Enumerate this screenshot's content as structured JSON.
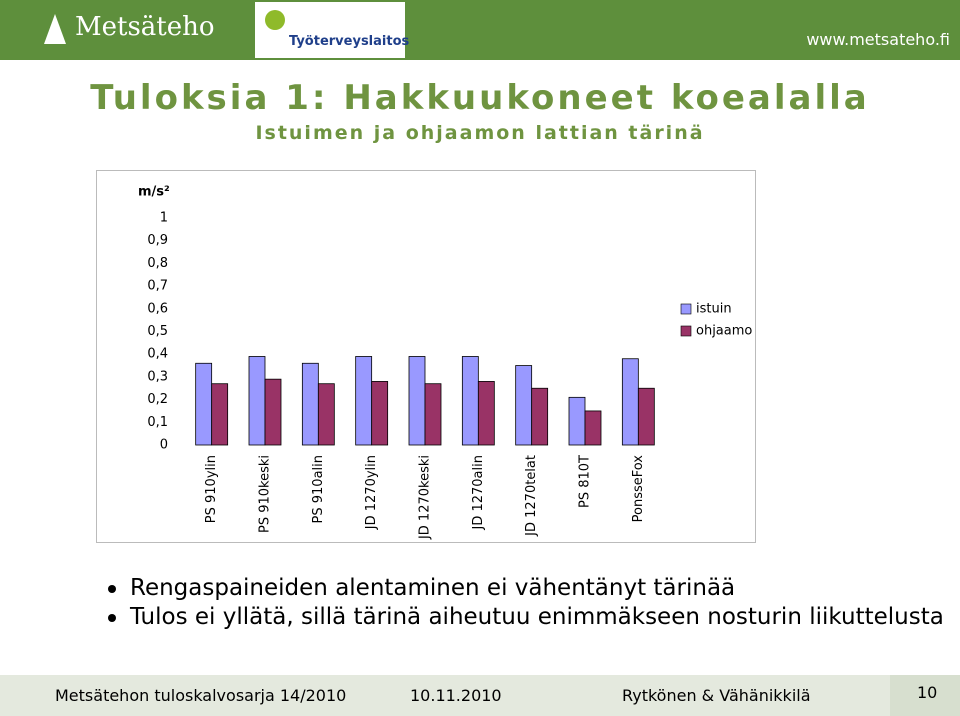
{
  "header": {
    "logo": "Metsäteho",
    "partner": "Työterveyslaitos",
    "url": "www.metsateho.fi"
  },
  "chart_data": {
    "type": "bar",
    "title": "Tuloksia 1: Hakkuukoneet koealalla",
    "subtitle": "Istuimen ja ohjaamon lattian tärinä",
    "ylabel": "m/s²",
    "categories": [
      "PS 910ylin",
      "PS 910keski",
      "PS 910alin",
      "JD 1270ylin",
      "JD 1270keski",
      "JD 1270alin",
      "JD 1270telat",
      "PS 810T",
      "PonsseFox"
    ],
    "series": [
      {
        "name": "istuin",
        "color": "#9999ff",
        "values": [
          0.36,
          0.39,
          0.36,
          0.39,
          0.39,
          0.39,
          0.35,
          0.21,
          0.38
        ]
      },
      {
        "name": "ohjaamo",
        "color": "#993366",
        "values": [
          0.27,
          0.29,
          0.27,
          0.28,
          0.27,
          0.28,
          0.25,
          0.15,
          0.25
        ]
      }
    ],
    "ylim": [
      0,
      1
    ],
    "yticks": [
      0,
      {
        "value": 0.1,
        "label": "0,1"
      },
      {
        "value": 0.2,
        "label": "0,2"
      },
      {
        "value": 0.3,
        "label": "0,3"
      },
      {
        "value": 0.4,
        "label": "0,4"
      },
      {
        "value": 0.5,
        "label": "0,5"
      },
      {
        "value": 0.6,
        "label": "0,6"
      },
      {
        "value": 0.7,
        "label": "0,7"
      },
      {
        "value": 0.8,
        "label": "0,8"
      },
      {
        "value": 0.9,
        "label": "0,9"
      },
      1
    ],
    "grid": false,
    "legend": "right"
  },
  "bullets": [
    "Rengaspaineiden alentaminen ei vähentänyt tärinää",
    "Tulos ei yllätä, sillä tärinä aiheutuu enimmäkseen nosturin liikuttelusta"
  ],
  "footer": {
    "series": "Metsätehon tuloskalvosarja 14/2010",
    "date": "10.11.2010",
    "authors": "Rytkönen & Vähänikkilä",
    "page": "10"
  }
}
